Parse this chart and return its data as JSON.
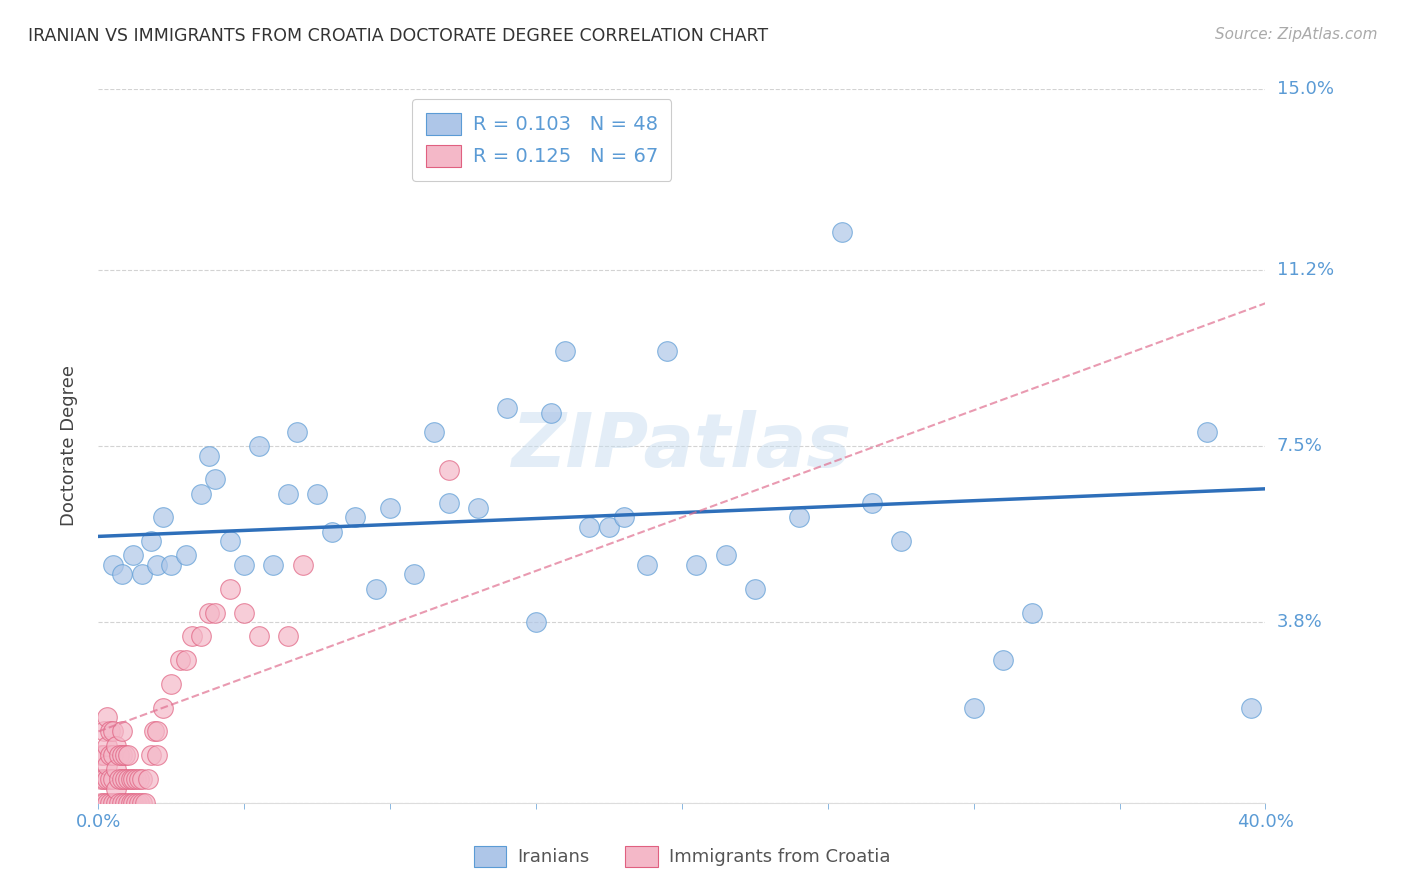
{
  "title": "IRANIAN VS IMMIGRANTS FROM CROATIA DOCTORATE DEGREE CORRELATION CHART",
  "source": "Source: ZipAtlas.com",
  "ylabel": "Doctorate Degree",
  "xlim": [
    0.0,
    0.4
  ],
  "ylim": [
    0.0,
    0.15
  ],
  "xticks": [
    0.0,
    0.05,
    0.1,
    0.15,
    0.2,
    0.25,
    0.3,
    0.35,
    0.4
  ],
  "xticklabels": [
    "0.0%",
    "",
    "",
    "",
    "",
    "",
    "",
    "",
    "40.0%"
  ],
  "yticks": [
    0.0,
    0.038,
    0.075,
    0.112,
    0.15
  ],
  "yticklabels_right": [
    "",
    "3.8%",
    "7.5%",
    "11.2%",
    "15.0%"
  ],
  "tick_color": "#5b9bd5",
  "background_color": "#ffffff",
  "grid_color": "#c8c8c8",
  "iranians_color": "#aec6e8",
  "iranians_edge_color": "#5b9bd5",
  "croatia_color": "#f4b8c8",
  "croatia_edge_color": "#e06080",
  "iranians_R": 0.103,
  "iranians_N": 48,
  "croatia_R": 0.125,
  "croatia_N": 67,
  "trendline_blue_color": "#2e6fba",
  "trendline_pink_color": "#e07090",
  "watermark": "ZIPatlas",
  "iranians_x": [
    0.005,
    0.008,
    0.012,
    0.015,
    0.018,
    0.02,
    0.022,
    0.025,
    0.03,
    0.035,
    0.038,
    0.04,
    0.045,
    0.05,
    0.055,
    0.06,
    0.065,
    0.068,
    0.075,
    0.08,
    0.088,
    0.095,
    0.1,
    0.108,
    0.115,
    0.12,
    0.13,
    0.14,
    0.15,
    0.155,
    0.16,
    0.168,
    0.175,
    0.18,
    0.188,
    0.195,
    0.205,
    0.215,
    0.225,
    0.24,
    0.255,
    0.265,
    0.275,
    0.3,
    0.31,
    0.32,
    0.38,
    0.395
  ],
  "iranians_y": [
    0.05,
    0.048,
    0.052,
    0.048,
    0.055,
    0.05,
    0.06,
    0.05,
    0.052,
    0.065,
    0.073,
    0.068,
    0.055,
    0.05,
    0.075,
    0.05,
    0.065,
    0.078,
    0.065,
    0.057,
    0.06,
    0.045,
    0.062,
    0.048,
    0.078,
    0.063,
    0.062,
    0.083,
    0.038,
    0.082,
    0.095,
    0.058,
    0.058,
    0.06,
    0.05,
    0.095,
    0.05,
    0.052,
    0.045,
    0.06,
    0.12,
    0.063,
    0.055,
    0.02,
    0.03,
    0.04,
    0.078,
    0.02
  ],
  "croatia_x": [
    0.001,
    0.001,
    0.001,
    0.002,
    0.002,
    0.002,
    0.002,
    0.003,
    0.003,
    0.003,
    0.003,
    0.003,
    0.004,
    0.004,
    0.004,
    0.004,
    0.005,
    0.005,
    0.005,
    0.005,
    0.006,
    0.006,
    0.006,
    0.006,
    0.007,
    0.007,
    0.007,
    0.008,
    0.008,
    0.008,
    0.008,
    0.009,
    0.009,
    0.009,
    0.01,
    0.01,
    0.01,
    0.011,
    0.011,
    0.012,
    0.012,
    0.013,
    0.013,
    0.014,
    0.014,
    0.015,
    0.015,
    0.016,
    0.017,
    0.018,
    0.019,
    0.02,
    0.02,
    0.022,
    0.025,
    0.028,
    0.03,
    0.032,
    0.035,
    0.038,
    0.04,
    0.045,
    0.05,
    0.055,
    0.065,
    0.07,
    0.12
  ],
  "croatia_y": [
    0.0,
    0.005,
    0.01,
    0.0,
    0.005,
    0.01,
    0.015,
    0.0,
    0.005,
    0.008,
    0.012,
    0.018,
    0.0,
    0.005,
    0.01,
    0.015,
    0.0,
    0.005,
    0.01,
    0.015,
    0.0,
    0.003,
    0.007,
    0.012,
    0.0,
    0.005,
    0.01,
    0.0,
    0.005,
    0.01,
    0.015,
    0.0,
    0.005,
    0.01,
    0.0,
    0.005,
    0.01,
    0.0,
    0.005,
    0.0,
    0.005,
    0.0,
    0.005,
    0.0,
    0.005,
    0.0,
    0.005,
    0.0,
    0.005,
    0.01,
    0.015,
    0.01,
    0.015,
    0.02,
    0.025,
    0.03,
    0.03,
    0.035,
    0.035,
    0.04,
    0.04,
    0.045,
    0.04,
    0.035,
    0.035,
    0.05,
    0.07
  ]
}
